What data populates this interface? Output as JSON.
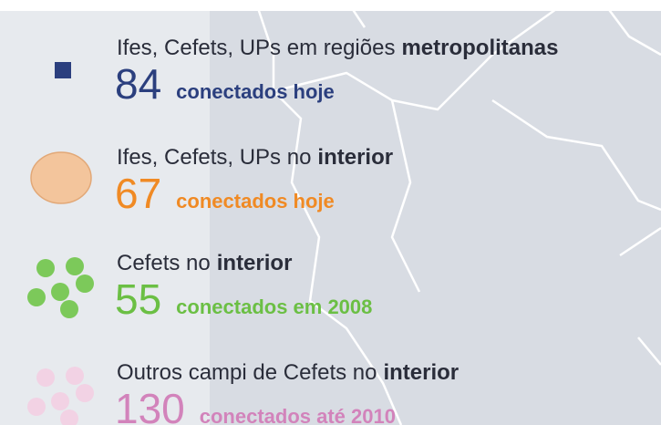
{
  "legend": {
    "items": [
      {
        "label": "Ifes, Cefets, UPs em regiões",
        "label_bold": "metropolitanas",
        "count": "84",
        "note": "conectados hoje"
      },
      {
        "label": "Ifes, Cefets, UPs no",
        "label_bold": "interior",
        "count": "67",
        "note": "conectados hoje"
      },
      {
        "label": "Cefets no",
        "label_bold": "interior",
        "count": "55",
        "note": "conectados em 2008"
      },
      {
        "label": "Outros campi de Cefets no",
        "label_bold": "interior",
        "count": "130",
        "note": "conectados até 2010"
      }
    ]
  }
}
